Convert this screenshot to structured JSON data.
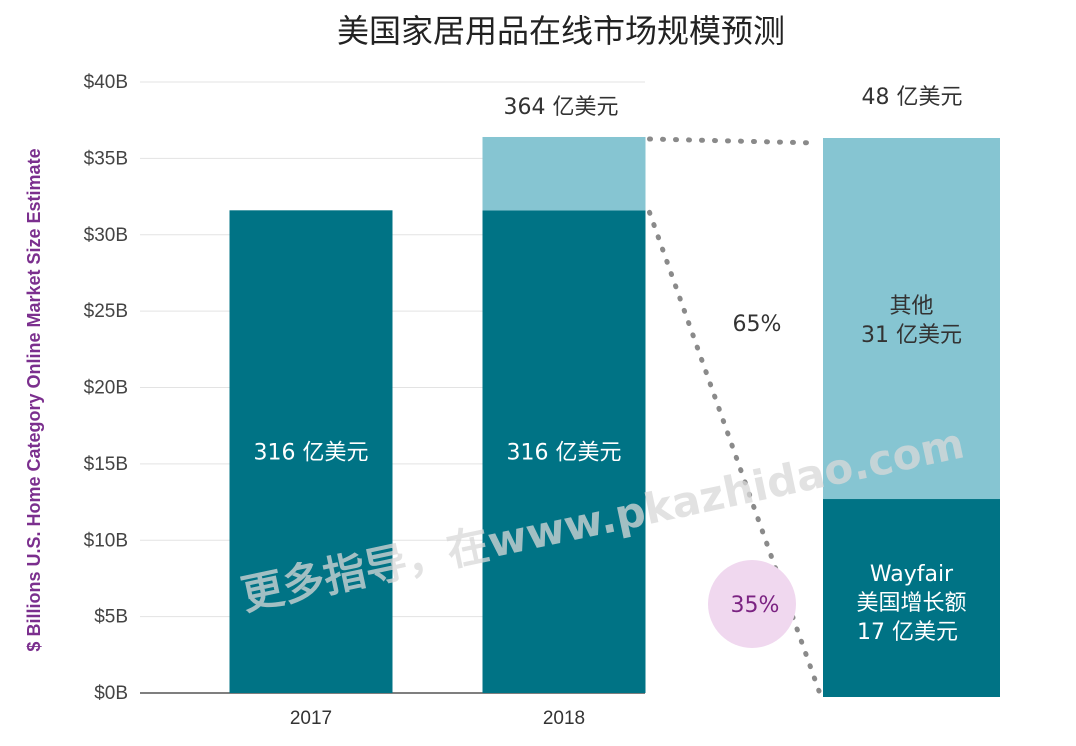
{
  "chart_data": {
    "type": "bar",
    "title": "美国家居用品在线市场规模预测",
    "ylabel": "$ Billions U.S. Home Category Online Market Size Estimate",
    "ylim": [
      0,
      40
    ],
    "yticks": [
      0,
      5,
      10,
      15,
      20,
      25,
      30,
      35,
      40
    ],
    "ytick_labels": [
      "$0B",
      "$5B",
      "$10B",
      "$15B",
      "$20B",
      "$25B",
      "$30B",
      "$35B",
      "$40B"
    ],
    "categories": [
      "2017",
      "2018"
    ],
    "series": [
      {
        "key": "base",
        "values": [
          31.6,
          31.6
        ],
        "color": "#007385"
      },
      {
        "key": "growth",
        "values": [
          0,
          4.8
        ],
        "color": "#86c5d2"
      }
    ],
    "bar_labels": [
      "316 亿美元",
      "316 亿美元"
    ],
    "total_label_2018": "364 亿美元",
    "breakdown": {
      "total_label": "48 亿美元",
      "segments": [
        {
          "key": "wayfair",
          "value": 1.7,
          "color": "#007385",
          "lines": [
            "Wayfair",
            "美国增长额",
            "17 亿美元"
          ],
          "pct": "35%"
        },
        {
          "key": "other",
          "value": 3.1,
          "color": "#86c5d2",
          "lines": [
            "其他",
            "31 亿美元"
          ],
          "pct": "65%"
        }
      ]
    },
    "grid": true
  },
  "watermark": "更多指导，在www.pkazhidao.com"
}
